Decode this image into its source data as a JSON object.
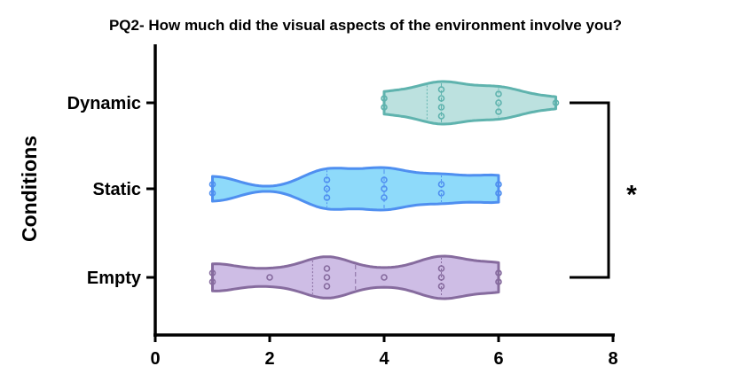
{
  "chart_data": {
    "type": "violin",
    "title": "PQ2-  How much did the visual aspects of the environment involve you?",
    "xlabel": "",
    "ylabel": "Conditions",
    "xlim": [
      0,
      8
    ],
    "xticks": [
      0,
      2,
      4,
      6,
      8
    ],
    "orientation": "horizontal",
    "grid": false,
    "categories": [
      "Dynamic",
      "Static",
      "Empty"
    ],
    "series": [
      {
        "category": "Dynamic",
        "color": "#5fb3ae",
        "fill": "#b5dedb",
        "points": [
          4,
          4,
          5,
          5,
          5,
          5,
          6,
          6,
          6,
          7
        ],
        "quartiles": [
          4.75,
          5,
          6
        ]
      },
      {
        "category": "Static",
        "color": "#4f8ff0",
        "fill": "#82d6fa",
        "points": [
          1,
          1,
          3,
          3,
          3,
          4,
          4,
          4,
          5,
          5,
          6,
          6
        ],
        "quartiles": [
          3,
          4,
          5
        ]
      },
      {
        "category": "Empty",
        "color": "#866b9e",
        "fill": "#c9b6e2",
        "points": [
          1,
          1,
          2,
          3,
          3,
          3,
          4,
          5,
          5,
          5,
          6,
          6
        ],
        "quartiles": [
          2.75,
          3.5,
          5
        ]
      }
    ],
    "annotations": [
      {
        "text": "*",
        "between": [
          "Dynamic",
          "Empty"
        ]
      }
    ]
  }
}
